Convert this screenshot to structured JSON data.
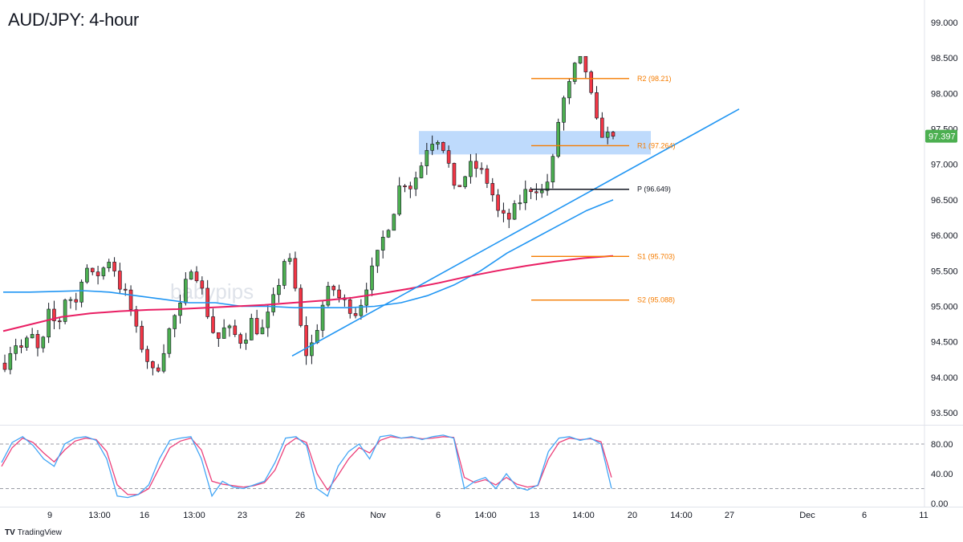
{
  "header": {
    "title": "AUD/JPY: 4-hour"
  },
  "watermark": "babypips",
  "branding": {
    "logo_text": "TradingView"
  },
  "colors": {
    "bull": "#4caf50",
    "bear": "#f23645",
    "wick": "#131722",
    "sma_fast": "#2196f3",
    "sma_slow": "#e91e63",
    "trend": "#2196f3",
    "zone": "#b3d4fc",
    "pivot_orange": "#f57c00",
    "pivot_black": "#131722",
    "stoch_k": "#42a5f5",
    "stoch_d": "#ec407a",
    "price_tag": "#4caf50"
  },
  "chart_data": {
    "type": "candlestick",
    "instrument": "AUD/JPY",
    "timeframe": "4-hour",
    "price_axis": {
      "ticks": [
        "99.000",
        "98.500",
        "98.000",
        "97.500",
        "97.000",
        "96.500",
        "96.000",
        "95.500",
        "95.000",
        "94.500",
        "94.000",
        "93.500"
      ],
      "range": [
        93.3,
        99.2
      ]
    },
    "current_price": "97.397",
    "time_axis": [
      "9",
      "13:00",
      "16",
      "13:00",
      "23",
      "26",
      "Nov",
      "6",
      "14:00",
      "13",
      "14:00",
      "20",
      "14:00",
      "27",
      "Dec",
      "6",
      "11"
    ],
    "pivot_levels": [
      {
        "label": "R2 (98.21)",
        "value": 98.21
      },
      {
        "label": "R1 (97.264)",
        "value": 97.264
      },
      {
        "label": "P (96.649)",
        "value": 96.649
      },
      {
        "label": "S1 (95.703)",
        "value": 95.703
      },
      {
        "label": "S2 (95.088)",
        "value": 95.088
      }
    ],
    "resistance_zone": [
      97.14,
      97.47
    ],
    "trend_line": {
      "from_price": 94.3,
      "to_price": 97.78
    },
    "oscillator": {
      "name": "Stochastic",
      "ticks": [
        "80.00",
        "40.00",
        "0.00"
      ],
      "levels": [
        80,
        20
      ],
      "range": [
        0,
        100
      ]
    },
    "price_path": [
      94.2,
      94.5,
      94.4,
      94.6,
      94.3,
      94.9,
      94.7,
      95.2,
      95.0,
      95.6,
      95.4,
      95.5,
      95.7,
      95.3,
      95.1,
      94.6,
      94.3,
      94.0,
      94.4,
      94.8,
      95.0,
      95.6,
      95.4,
      94.9,
      94.5,
      94.7,
      94.6,
      94.5,
      94.8,
      94.6,
      94.9,
      95.3,
      95.8,
      95.2,
      94.3,
      94.5,
      95.0,
      95.3,
      95.1,
      95.0,
      94.9,
      95.3,
      95.6,
      96.0,
      96.3,
      96.8,
      96.7,
      96.9,
      97.3,
      97.4,
      97.2,
      96.6,
      96.8,
      97.0,
      96.9,
      96.7,
      96.3,
      96.2,
      96.4,
      96.6,
      96.7,
      96.6,
      96.9,
      97.8,
      98.1,
      98.5,
      98.3,
      97.6,
      97.4,
      97.397
    ],
    "sma_fast_path": [
      95.2,
      95.2,
      95.21,
      95.22,
      95.2,
      95.15,
      95.1,
      95.05,
      95.05,
      95.0,
      95.0,
      94.98,
      94.98,
      94.98,
      95.0,
      95.05,
      95.15,
      95.3,
      95.5,
      95.75,
      95.95,
      96.15,
      96.35,
      96.5
    ],
    "sma_slow_path": [
      94.65,
      94.75,
      94.85,
      94.9,
      94.93,
      94.95,
      94.96,
      94.98,
      95.0,
      95.02,
      95.05,
      95.08,
      95.12,
      95.18,
      95.25,
      95.33,
      95.42,
      95.5,
      95.57,
      95.63,
      95.68,
      95.71
    ],
    "stoch_k": [
      55,
      82,
      90,
      78,
      60,
      50,
      80,
      88,
      90,
      85,
      60,
      10,
      8,
      12,
      25,
      60,
      85,
      88,
      90,
      60,
      10,
      30,
      22,
      20,
      25,
      30,
      55,
      88,
      90,
      78,
      20,
      10,
      50,
      70,
      80,
      60,
      90,
      92,
      88,
      90,
      86,
      90,
      92,
      88,
      20,
      30,
      35,
      20,
      40,
      22,
      18,
      25,
      70,
      88,
      90,
      85,
      88,
      80,
      20
    ],
    "stoch_d": [
      50,
      75,
      88,
      82,
      68,
      56,
      72,
      84,
      88,
      86,
      70,
      25,
      12,
      12,
      20,
      48,
      75,
      84,
      88,
      72,
      30,
      26,
      24,
      22,
      24,
      28,
      45,
      78,
      88,
      82,
      40,
      18,
      38,
      60,
      75,
      68,
      85,
      90,
      88,
      89,
      87,
      88,
      90,
      89,
      35,
      28,
      32,
      25,
      35,
      26,
      22,
      24,
      60,
      82,
      88,
      86,
      87,
      83,
      35
    ]
  }
}
